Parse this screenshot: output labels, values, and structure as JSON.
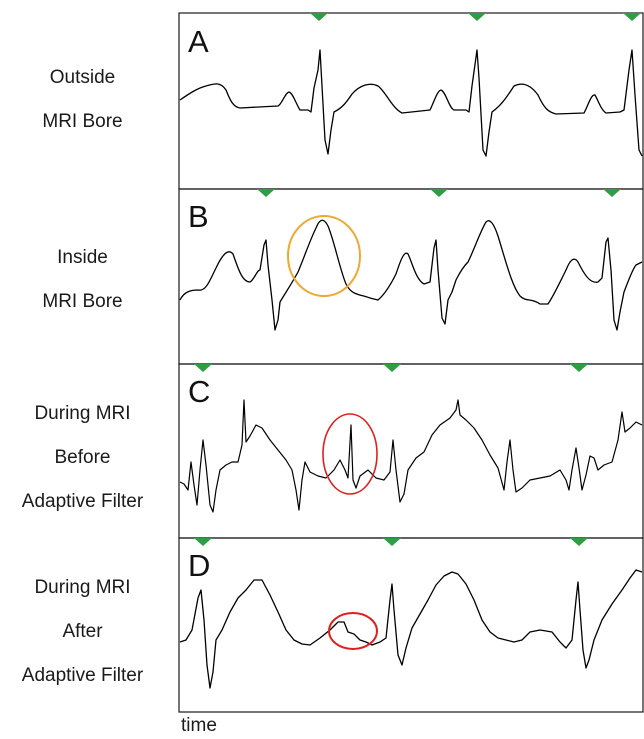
{
  "panels": [
    {
      "letter": "A",
      "label_lines": [
        "Outside",
        "MRI Bore"
      ]
    },
    {
      "letter": "B",
      "label_lines": [
        "Inside",
        "MRI Bore"
      ]
    },
    {
      "letter": "C",
      "label_lines": [
        "During MRI",
        "Before",
        "Adaptive Filter"
      ]
    },
    {
      "letter": "D",
      "label_lines": [
        "During MRI",
        "After",
        "Adaptive Filter"
      ]
    }
  ],
  "x_axis_label": "time",
  "colors": {
    "trace": "#000000",
    "frame": "#1a1a1a",
    "marker": "#2e9e44",
    "highlight_orange": "#f0a830",
    "highlight_red": "#e02020"
  },
  "icons": {
    "beat_marker": "green-triangle-marker-icon",
    "highlight": "ellipse-highlight-icon"
  }
}
